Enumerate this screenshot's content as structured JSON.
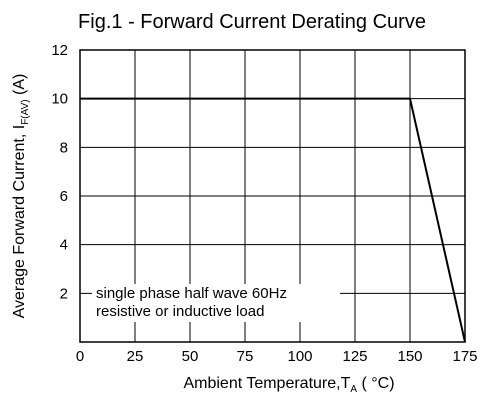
{
  "chart_data": {
    "type": "line",
    "title": "Fig.1 - Forward Current Derating Curve",
    "xlabel": {
      "main": "Ambient Temperature,T",
      "sub": "A",
      "tail": " ( °C)"
    },
    "ylabel": {
      "main": "Average Forward Current, I",
      "sub": "F(AV)",
      "tail": " (A)"
    },
    "xlim": [
      0,
      175
    ],
    "ylim": [
      0,
      12
    ],
    "x_ticks": [
      "0",
      "25",
      "50",
      "75",
      "100",
      "125",
      "150",
      "175"
    ],
    "y_ticks": [
      "2",
      "4",
      "6",
      "8",
      "10",
      "12"
    ],
    "grid": true,
    "series": [
      {
        "x": [
          0,
          150,
          175
        ],
        "y": [
          10,
          10,
          0
        ]
      }
    ],
    "annotation": {
      "lines": [
        "single phase half wave 60Hz",
        "resistive or inductive load"
      ]
    }
  }
}
